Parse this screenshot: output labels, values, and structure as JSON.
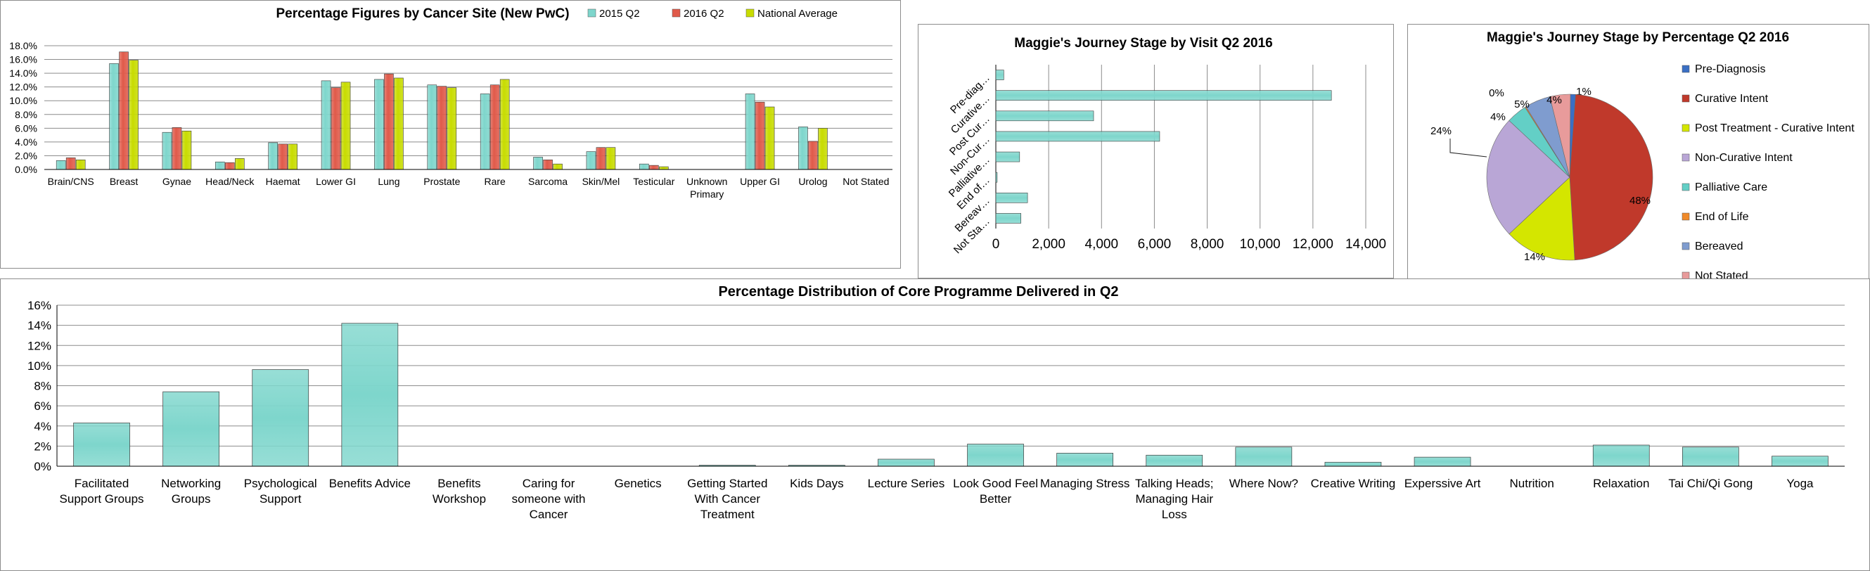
{
  "colors": {
    "s2015": "#7ed6cc",
    "s2016": "#e05a4a",
    "national": "#c8dc00",
    "teal": "#7ed6cc",
    "grid": "#8c8c8c"
  },
  "chart_data": [
    {
      "id": "cancer-site",
      "type": "bar",
      "title": "Percentage Figures by Cancer Site (New PwC)",
      "legend_placement": "top-right",
      "categories": [
        "Brain/CNS",
        "Breast",
        "Gynae",
        "Head/Neck",
        "Haemat",
        "Lower GI",
        "Lung",
        "Prostate",
        "Rare",
        "Sarcoma",
        "Skin/Mel",
        "Testicular",
        "Unknown Primary",
        "Upper GI",
        "Urolog",
        "Not Stated"
      ],
      "series": [
        {
          "name": "2015 Q2",
          "color_key": "s2015",
          "values": [
            1.3,
            15.4,
            5.4,
            1.1,
            3.9,
            12.9,
            13.1,
            12.3,
            11.0,
            1.8,
            2.6,
            0.8,
            0,
            11.0,
            6.2,
            0
          ]
        },
        {
          "name": "2016 Q2",
          "color_key": "s2016",
          "values": [
            1.7,
            17.1,
            6.1,
            1.0,
            3.7,
            11.9,
            13.9,
            12.1,
            12.3,
            1.4,
            3.2,
            0.6,
            0,
            9.8,
            4.1,
            0
          ]
        },
        {
          "name": "National Average",
          "color_key": "national",
          "values": [
            1.4,
            15.9,
            5.6,
            1.6,
            3.7,
            12.7,
            13.3,
            11.9,
            13.1,
            0.8,
            3.2,
            0.4,
            0,
            9.1,
            6.0,
            0
          ]
        }
      ],
      "ylim": [
        0,
        18
      ],
      "yticks": [
        "0.0%",
        "2.0%",
        "4.0%",
        "6.0%",
        "8.0%",
        "10.0%",
        "12.0%",
        "14.0%",
        "16.0%",
        "18.0%"
      ],
      "grid": true
    },
    {
      "id": "journey-visit",
      "type": "bar",
      "orientation": "horizontal",
      "title": "Maggie's Journey Stage by Visit Q2 2016",
      "categories": [
        "Pre-diag…",
        "Curative…",
        "Post Cur…",
        "Non-Cur…",
        "Palliative…",
        "End of…",
        "Bereav…",
        "Not Sta…"
      ],
      "values": [
        300,
        12700,
        3700,
        6200,
        900,
        50,
        1200,
        950
      ],
      "xlim": [
        0,
        14000
      ],
      "xticks": [
        "0",
        "2,000",
        "4,000",
        "6,000",
        "8,000",
        "10,000",
        "12,000",
        "14,000"
      ],
      "grid": true
    },
    {
      "id": "journey-pie",
      "type": "pie",
      "title": "Maggie's Journey Stage by Percentage Q2 2016",
      "legend_placement": "right",
      "slices": [
        {
          "label": "Pre-Diagnosis",
          "value": 1,
          "display": "1%",
          "color": "#3a6fc4"
        },
        {
          "label": "Curative Intent",
          "value": 48,
          "display": "48%",
          "color": "#c0392b"
        },
        {
          "label": "Post Treatment - Curative Intent",
          "value": 14,
          "display": "14%",
          "color": "#d4e600"
        },
        {
          "label": "Non-Curative Intent",
          "value": 24,
          "display": "24%",
          "color": "#b9a6d6"
        },
        {
          "label": "Palliative Care",
          "value": 4,
          "display": "4%",
          "color": "#63cfc6"
        },
        {
          "label": "End of Life",
          "value": 0.2,
          "display": "0%",
          "color": "#f08a2a"
        },
        {
          "label": "Bereaved",
          "value": 5,
          "display": "5%",
          "color": "#7f9ccf"
        },
        {
          "label": "Not Stated",
          "value": 4,
          "display": "4%",
          "color": "#e89b9b"
        }
      ]
    },
    {
      "id": "core-programme",
      "type": "bar",
      "title": "Percentage Distribution of Core Programme Delivered in Q2",
      "categories": [
        "Facilitated Support Groups",
        "Networking Groups",
        "Psychological Support",
        "Benefits Advice",
        "Benefits Workshop",
        "Caring for someone with Cancer",
        "Genetics",
        "Getting Started With Cancer Treatment",
        "Kids Days",
        "Lecture Series",
        "Look Good Feel Better",
        "Managing Stress",
        "Talking Heads; Managing Hair Loss",
        "Where Now?",
        "Creative Writing",
        "Experssive Art",
        "Nutrition",
        "Relaxation",
        "Tai Chi/Qi Gong",
        "Yoga"
      ],
      "category_lines": [
        [
          "Facilitated",
          "Support Groups"
        ],
        [
          "Networking",
          "Groups"
        ],
        [
          "Psychological",
          "Support"
        ],
        [
          "Benefits Advice"
        ],
        [
          "Benefits",
          "Workshop"
        ],
        [
          "Caring for",
          "someone with",
          "Cancer"
        ],
        [
          "Genetics"
        ],
        [
          "Getting Started",
          "With Cancer",
          "Treatment"
        ],
        [
          "Kids Days"
        ],
        [
          "Lecture Series"
        ],
        [
          "Look Good Feel",
          "Better"
        ],
        [
          "Managing Stress"
        ],
        [
          "Talking Heads;",
          "Managing Hair",
          "Loss"
        ],
        [
          "Where Now?"
        ],
        [
          "Creative Writing"
        ],
        [
          "Experssive Art"
        ],
        [
          "Nutrition"
        ],
        [
          "Relaxation"
        ],
        [
          "Tai Chi/Qi Gong"
        ],
        [
          "Yoga"
        ]
      ],
      "values": [
        4.3,
        7.4,
        9.6,
        14.2,
        0,
        0,
        0,
        0.1,
        0.1,
        0.7,
        2.2,
        1.3,
        1.1,
        1.9,
        0.4,
        0.9,
        0,
        2.1,
        1.9,
        1.0
      ],
      "ylim": [
        0,
        16
      ],
      "yticks": [
        "0%",
        "2%",
        "4%",
        "6%",
        "8%",
        "10%",
        "12%",
        "14%",
        "16%"
      ],
      "grid": true
    }
  ]
}
